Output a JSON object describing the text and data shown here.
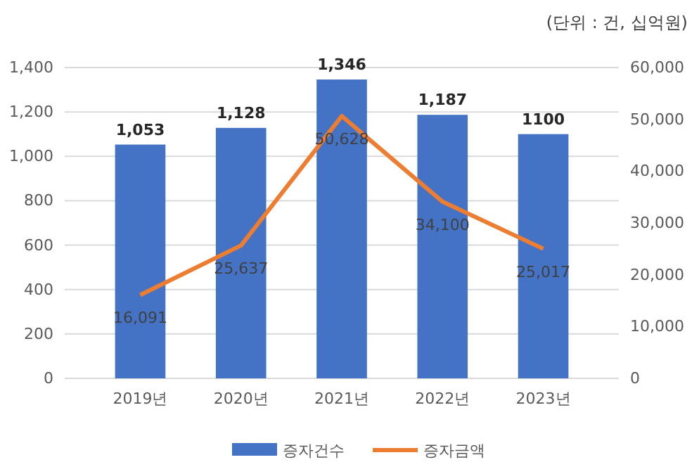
{
  "chart_data": {
    "type": "bar",
    "categories": [
      "2019년",
      "2020년",
      "2021년",
      "2022년",
      "2023년"
    ],
    "series": [
      {
        "name": "증자건수",
        "color": "#4472c4",
        "values": [
          1053,
          1128,
          1346,
          1187,
          1100
        ],
        "value_labels": [
          "1,053",
          "1,128",
          "1,346",
          "1,187",
          "1100"
        ]
      },
      {
        "name": "증자금액",
        "type": "line",
        "axis": "y2",
        "color": "#ed7d31",
        "values": [
          16091,
          25637,
          50628,
          34100,
          25017
        ],
        "value_labels": [
          "16,091",
          "25,637",
          "50,628",
          "34,100",
          "25,017"
        ]
      }
    ],
    "ylim": [
      0,
      1400
    ],
    "yticks": [
      {
        "value": 0,
        "label": "0"
      },
      {
        "value": 200,
        "label": "200"
      },
      {
        "value": 400,
        "label": "400"
      },
      {
        "value": 600,
        "label": "600"
      },
      {
        "value": 800,
        "label": "800"
      },
      {
        "value": 1000,
        "label": "1,000"
      },
      {
        "value": 1200,
        "label": "1,200"
      },
      {
        "value": 1400,
        "label": "1,400"
      }
    ],
    "y2lim": [
      0,
      60000
    ],
    "y2ticks": [
      {
        "value": 0,
        "label": "0"
      },
      {
        "value": 10000,
        "label": "10,000"
      },
      {
        "value": 20000,
        "label": "20,000"
      },
      {
        "value": 30000,
        "label": "30,000"
      },
      {
        "value": 40000,
        "label": "40,000"
      },
      {
        "value": 50000,
        "label": "50,000"
      },
      {
        "value": 60000,
        "label": "60,000"
      }
    ],
    "grid": "y",
    "legend": "bottom",
    "marker": "none",
    "line_style": "solid",
    "annotations": [
      "(단위 : 건, 십억원)"
    ]
  }
}
